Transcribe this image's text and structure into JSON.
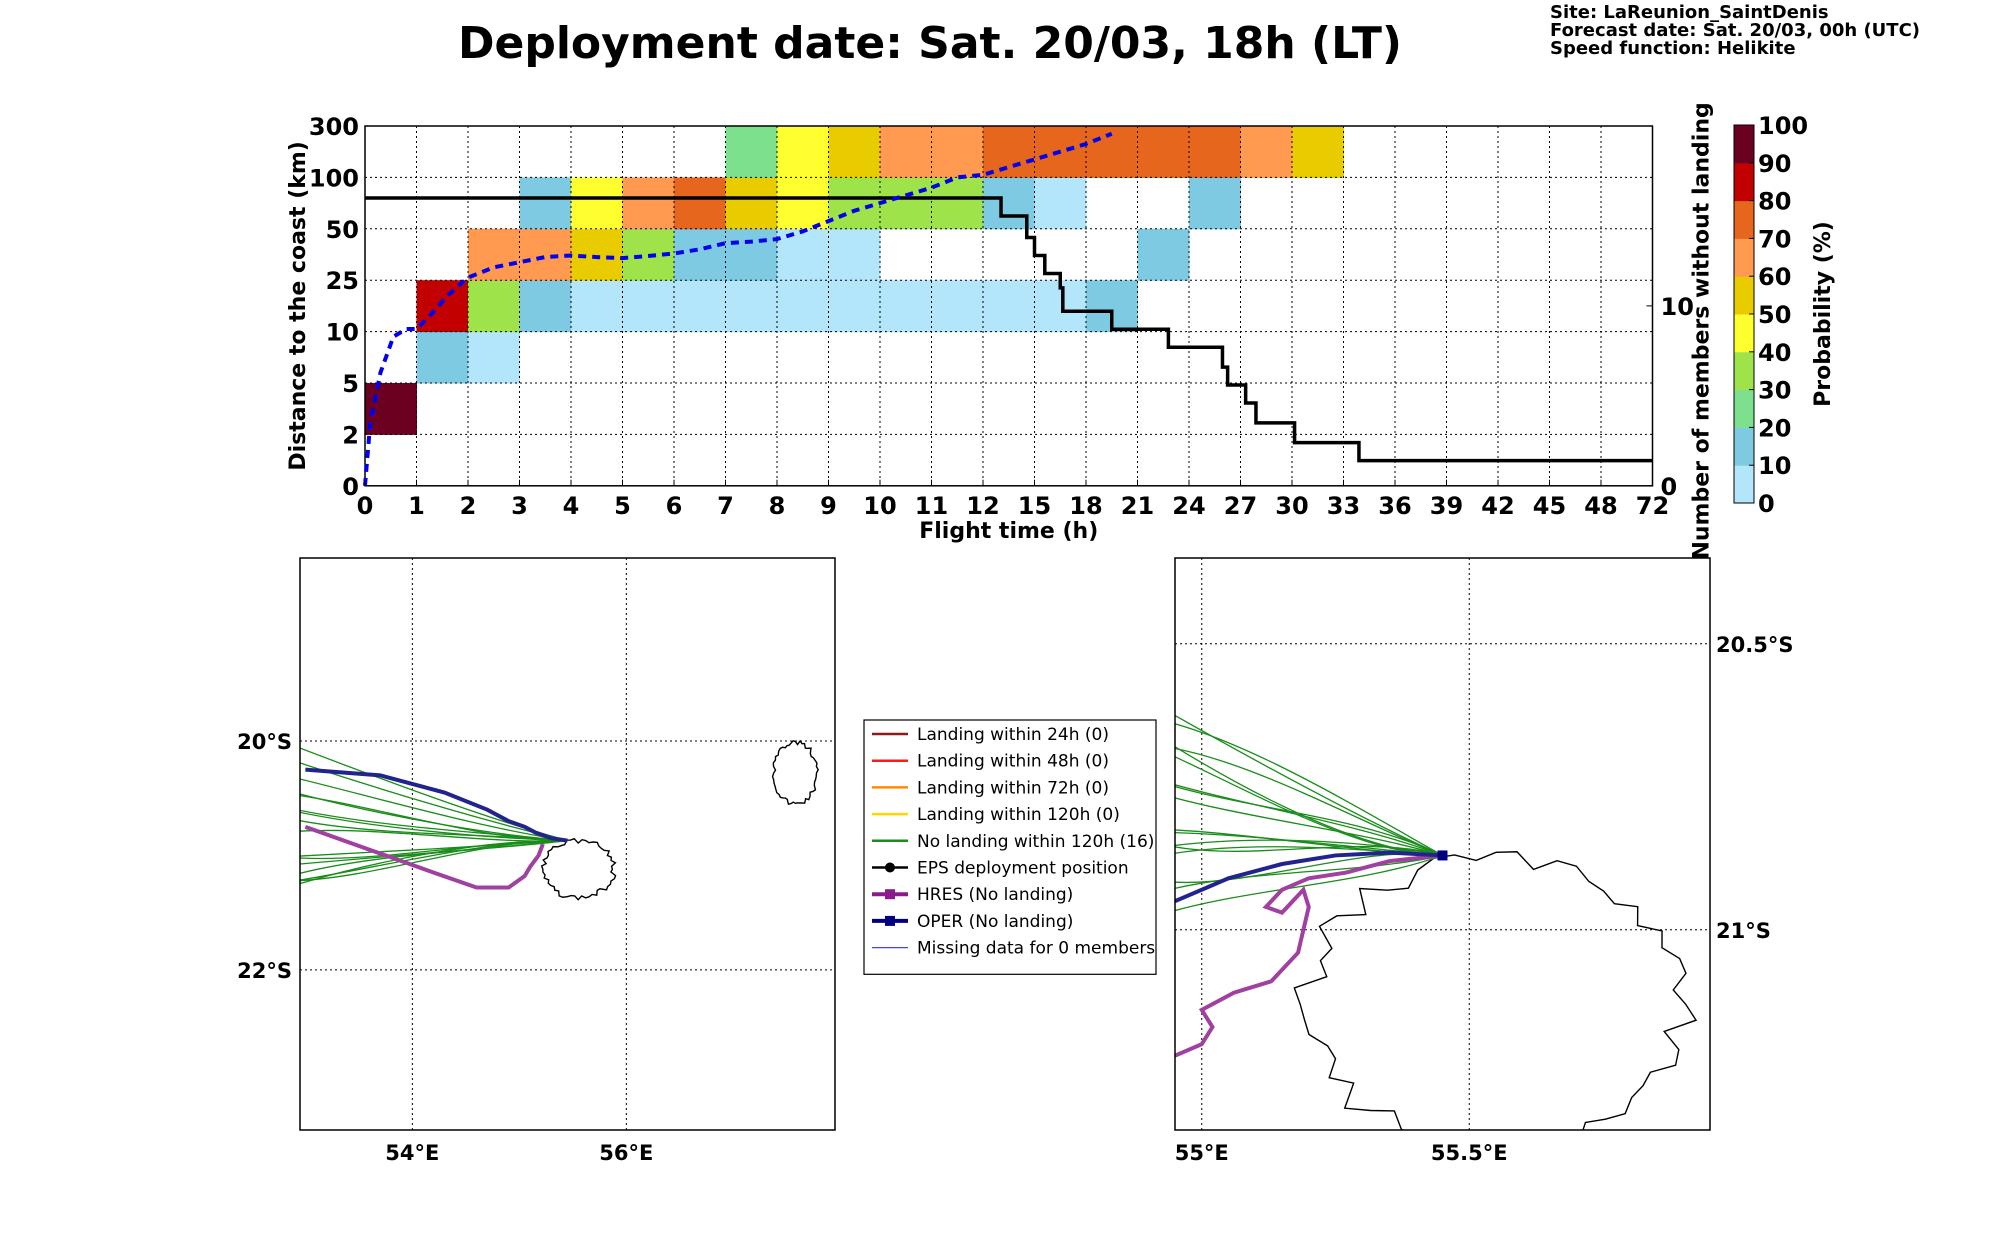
{
  "title": "Deployment date: Sat. 20/03, 18h (LT)",
  "site_info": [
    "Site: LaReunion_SaintDenis",
    "Forecast date: Sat. 20/03, 00h (UTC)",
    "Speed function: Helikite"
  ],
  "chart_data": [
    {
      "type": "heatmap",
      "xlabel": "Flight time (h)",
      "ylabel": "Distance to the coast (km)",
      "ylabel_right": "Number of members without landing",
      "colorbar_label": "Probability (%)",
      "x_ticks": [
        "0",
        "1",
        "2",
        "3",
        "4",
        "5",
        "6",
        "7",
        "8",
        "9",
        "10",
        "11",
        "12",
        "15",
        "18",
        "21",
        "24",
        "27",
        "30",
        "33",
        "36",
        "39",
        "42",
        "45",
        "48",
        "72"
      ],
      "y_ticks": [
        "0",
        "2",
        "5",
        "10",
        "25",
        "50",
        "100",
        "300"
      ],
      "right_ticks": [
        "0",
        "10"
      ],
      "right_ylim": [
        0,
        20
      ],
      "colorbar_ticks": [
        "0",
        "10",
        "20",
        "30",
        "40",
        "50",
        "60",
        "70",
        "80",
        "90",
        "100"
      ],
      "colorbar_colors": [
        "#b3e5fb",
        "#7ecae3",
        "#7de08c",
        "#9fe34a",
        "#ffff30",
        "#e8cc00",
        "#ff9a50",
        "#e5661c",
        "#c20000",
        "#6b0020"
      ],
      "cells": [
        {
          "x": 0,
          "y": 1,
          "p": 95
        },
        {
          "x": 1,
          "y": 2,
          "p": 15
        },
        {
          "x": 1,
          "y": 3,
          "p": 85
        },
        {
          "x": 2,
          "y": 2,
          "p": 5
        },
        {
          "x": 2,
          "y": 3,
          "p": 35
        },
        {
          "x": 2,
          "y": 4,
          "p": 65
        },
        {
          "x": 3,
          "y": 3,
          "p": 15
        },
        {
          "x": 3,
          "y": 4,
          "p": 65
        },
        {
          "x": 3,
          "y": 5,
          "p": 15
        },
        {
          "x": 4,
          "y": 3,
          "p": 5
        },
        {
          "x": 4,
          "y": 4,
          "p": 55
        },
        {
          "x": 4,
          "y": 5,
          "p": 45
        },
        {
          "x": 5,
          "y": 3,
          "p": 5
        },
        {
          "x": 5,
          "y": 4,
          "p": 35
        },
        {
          "x": 5,
          "y": 5,
          "p": 65
        },
        {
          "x": 6,
          "y": 3,
          "p": 5
        },
        {
          "x": 6,
          "y": 4,
          "p": 15
        },
        {
          "x": 6,
          "y": 5,
          "p": 75
        },
        {
          "x": 7,
          "y": 3,
          "p": 5
        },
        {
          "x": 7,
          "y": 4,
          "p": 15
        },
        {
          "x": 7,
          "y": 5,
          "p": 55
        },
        {
          "x": 7,
          "y": 6,
          "p": 25
        },
        {
          "x": 8,
          "y": 3,
          "p": 5
        },
        {
          "x": 8,
          "y": 4,
          "p": 5
        },
        {
          "x": 8,
          "y": 5,
          "p": 45
        },
        {
          "x": 8,
          "y": 6,
          "p": 45
        },
        {
          "x": 9,
          "y": 3,
          "p": 5
        },
        {
          "x": 9,
          "y": 4,
          "p": 5
        },
        {
          "x": 9,
          "y": 5,
          "p": 35
        },
        {
          "x": 9,
          "y": 6,
          "p": 55
        },
        {
          "x": 10,
          "y": 3,
          "p": 5
        },
        {
          "x": 10,
          "y": 5,
          "p": 35
        },
        {
          "x": 10,
          "y": 6,
          "p": 65
        },
        {
          "x": 11,
          "y": 3,
          "p": 5
        },
        {
          "x": 11,
          "y": 5,
          "p": 35
        },
        {
          "x": 11,
          "y": 6,
          "p": 65
        },
        {
          "x": 12,
          "y": 3,
          "p": 5
        },
        {
          "x": 12,
          "y": 5,
          "p": 15
        },
        {
          "x": 12,
          "y": 6,
          "p": 75
        },
        {
          "x": 13,
          "y": 3,
          "p": 5
        },
        {
          "x": 13,
          "y": 5,
          "p": 5
        },
        {
          "x": 13,
          "y": 6,
          "p": 75
        },
        {
          "x": 14,
          "y": 3,
          "p": 15
        },
        {
          "x": 14,
          "y": 6,
          "p": 75
        },
        {
          "x": 15,
          "y": 4,
          "p": 15
        },
        {
          "x": 15,
          "y": 6,
          "p": 75
        },
        {
          "x": 16,
          "y": 5,
          "p": 15
        },
        {
          "x": 16,
          "y": 6,
          "p": 75
        },
        {
          "x": 17,
          "y": 6,
          "p": 65
        },
        {
          "x": 18,
          "y": 6,
          "p": 55
        }
      ],
      "probability_median_line": {
        "color": "#0000ee",
        "points": [
          [
            0,
            0
          ],
          [
            0.1,
            1.2
          ],
          [
            0.3,
            2.2
          ],
          [
            0.55,
            2.9
          ],
          [
            0.8,
            3.05
          ],
          [
            1,
            3.05
          ],
          [
            1.3,
            3.35
          ],
          [
            1.6,
            3.7
          ],
          [
            2,
            4.05
          ],
          [
            2.5,
            4.25
          ],
          [
            3,
            4.35
          ],
          [
            3.5,
            4.45
          ],
          [
            4,
            4.48
          ],
          [
            4.5,
            4.45
          ],
          [
            5,
            4.43
          ],
          [
            5.5,
            4.47
          ],
          [
            6,
            4.52
          ],
          [
            6.5,
            4.6
          ],
          [
            7,
            4.72
          ],
          [
            7.5,
            4.75
          ],
          [
            8,
            4.8
          ],
          [
            8.5,
            4.95
          ],
          [
            9,
            5.15
          ],
          [
            9.5,
            5.35
          ],
          [
            10,
            5.5
          ],
          [
            10.5,
            5.65
          ],
          [
            11,
            5.8
          ],
          [
            11.5,
            6.0
          ],
          [
            12,
            6.05
          ],
          [
            12.5,
            6.2
          ],
          [
            13,
            6.35
          ],
          [
            13.5,
            6.5
          ],
          [
            14,
            6.65
          ],
          [
            14.5,
            6.85
          ]
        ]
      },
      "members_without_landing_step": {
        "color": "#000000",
        "points": [
          [
            0,
            16
          ],
          [
            12.35,
            16
          ],
          [
            12.35,
            15
          ],
          [
            12.85,
            15
          ],
          [
            12.85,
            13.8
          ],
          [
            13.0,
            13.8
          ],
          [
            13.0,
            12.8
          ],
          [
            13.2,
            12.8
          ],
          [
            13.2,
            11.8
          ],
          [
            13.5,
            11.8
          ],
          [
            13.5,
            11.0
          ],
          [
            13.55,
            11.0
          ],
          [
            13.55,
            9.7
          ],
          [
            14.5,
            9.7
          ],
          [
            14.5,
            8.7
          ],
          [
            15.6,
            8.7
          ],
          [
            15.6,
            7.7
          ],
          [
            16.65,
            7.7
          ],
          [
            16.65,
            6.6
          ],
          [
            16.75,
            6.6
          ],
          [
            16.75,
            5.6
          ],
          [
            17.1,
            5.6
          ],
          [
            17.1,
            4.6
          ],
          [
            17.3,
            4.6
          ],
          [
            17.3,
            3.5
          ],
          [
            18.05,
            3.5
          ],
          [
            18.05,
            2.4
          ],
          [
            19.3,
            2.4
          ],
          [
            19.3,
            1.4
          ],
          [
            25,
            1.4
          ]
        ]
      }
    },
    {
      "type": "scatter",
      "subtype": "trajectory-map",
      "x_ticks": [
        "54°E",
        "56°E"
      ],
      "y_ticks": [
        "20°S",
        "22°S"
      ],
      "xlim": [
        52.95,
        57.95
      ],
      "ylim": [
        -23.4,
        -18.4
      ],
      "oper": {
        "color": "#23238e",
        "points": [
          [
            53.0,
            -20.25
          ],
          [
            53.7,
            -20.3
          ],
          [
            54.3,
            -20.45
          ],
          [
            54.7,
            -20.6
          ],
          [
            54.9,
            -20.7
          ],
          [
            55.05,
            -20.75
          ],
          [
            55.15,
            -20.8
          ],
          [
            55.3,
            -20.85
          ],
          [
            55.45,
            -20.87
          ]
        ]
      },
      "hres": {
        "color": "#a040a0",
        "points": [
          [
            53.0,
            -20.75
          ],
          [
            53.6,
            -20.95
          ],
          [
            54.2,
            -21.15
          ],
          [
            54.6,
            -21.28
          ],
          [
            54.9,
            -21.28
          ],
          [
            55.05,
            -21.18
          ],
          [
            55.1,
            -21.1
          ],
          [
            55.18,
            -21.0
          ],
          [
            55.22,
            -20.9
          ]
        ]
      },
      "no_landing_members": {
        "color": "#1a8c1a",
        "count": 16
      }
    },
    {
      "type": "scatter",
      "subtype": "trajectory-map",
      "x_ticks": [
        "55°E",
        "55.5°E"
      ],
      "y_ticks": [
        "20.5°S",
        "21°S"
      ],
      "xlim": [
        54.95,
        55.95
      ],
      "ylim": [
        -21.35,
        -20.35
      ],
      "deployment_position": [
        55.45,
        -20.87
      ],
      "oper": {
        "color": "#23238e",
        "points": [
          [
            54.95,
            -20.95
          ],
          [
            55.05,
            -20.91
          ],
          [
            55.15,
            -20.885
          ],
          [
            55.25,
            -20.87
          ],
          [
            55.35,
            -20.865
          ],
          [
            55.45,
            -20.87
          ]
        ]
      },
      "hres": {
        "color": "#a040a0",
        "points": [
          [
            55.45,
            -20.87
          ],
          [
            55.35,
            -20.88
          ],
          [
            55.27,
            -20.9
          ],
          [
            55.2,
            -20.91
          ],
          [
            55.15,
            -20.93
          ],
          [
            55.12,
            -20.96
          ],
          [
            55.15,
            -20.97
          ],
          [
            55.19,
            -20.93
          ],
          [
            55.2,
            -20.96
          ],
          [
            55.18,
            -21.04
          ],
          [
            55.13,
            -21.09
          ],
          [
            55.06,
            -21.11
          ],
          [
            55.0,
            -21.14
          ],
          [
            55.02,
            -21.17
          ],
          [
            55.0,
            -21.2
          ],
          [
            54.95,
            -21.22
          ]
        ]
      },
      "no_landing_members": {
        "color": "#1a8c1a",
        "count": 16
      }
    }
  ],
  "legend": [
    {
      "label": "Landing within 24h (0)",
      "color": "#8b1a1a",
      "marker": "line"
    },
    {
      "label": "Landing within 48h (0)",
      "color": "#ff1a1a",
      "marker": "line"
    },
    {
      "label": "Landing within 72h (0)",
      "color": "#ff8c00",
      "marker": "line"
    },
    {
      "label": "Landing within 120h (0)",
      "color": "#ffd700",
      "marker": "line"
    },
    {
      "label": "No landing within 120h (16)",
      "color": "#1a8c1a",
      "marker": "line"
    },
    {
      "label": "EPS deployment position",
      "color": "#000000",
      "marker": "dot"
    },
    {
      "label": "HRES (No landing)",
      "color": "#8b1a8b",
      "marker": "square"
    },
    {
      "label": "OPER (No landing)",
      "color": "#000080",
      "marker": "square"
    },
    {
      "label": "Missing data for 0 members",
      "color": "#4444ff",
      "marker": "thinline"
    }
  ]
}
